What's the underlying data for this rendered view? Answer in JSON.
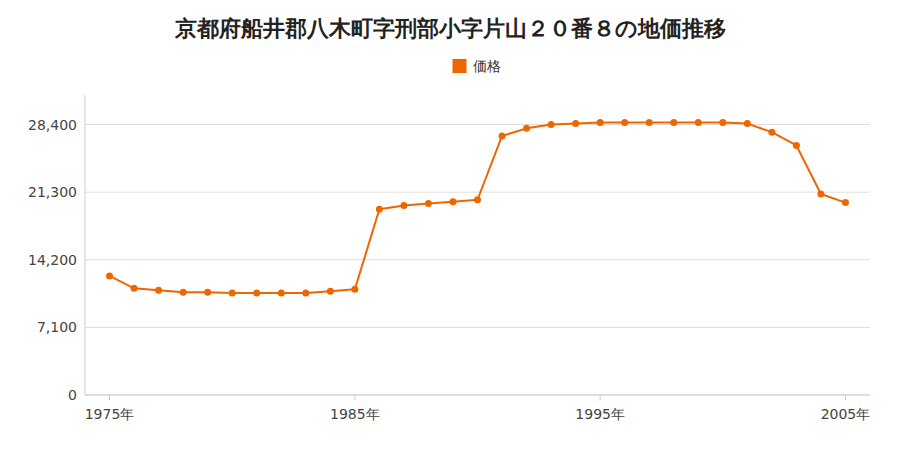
{
  "chart_data": {
    "type": "line",
    "title": "京都府船井郡八木町字刑部小字片山２０番８の地価推移",
    "x": [
      1975,
      1976,
      1977,
      1978,
      1979,
      1980,
      1981,
      1982,
      1983,
      1984,
      1985,
      1986,
      1987,
      1988,
      1989,
      1990,
      1991,
      1992,
      1993,
      1994,
      1995,
      1996,
      1997,
      1998,
      1999,
      2000,
      2001,
      2002,
      2003,
      2004,
      2005
    ],
    "series": [
      {
        "name": "価格",
        "color": "#ee6600",
        "marker": "circle",
        "values": [
          12500,
          11200,
          11000,
          10800,
          10800,
          10700,
          10700,
          10700,
          10700,
          10900,
          11100,
          19500,
          19900,
          20100,
          20300,
          20500,
          27200,
          28000,
          28400,
          28500,
          28600,
          28600,
          28600,
          28600,
          28600,
          28600,
          28500,
          27600,
          26200,
          21100,
          20200
        ]
      }
    ],
    "xlim": [
      1974,
      2006
    ],
    "xticks": [
      {
        "value": 1975,
        "label": "1975年"
      },
      {
        "value": 1985,
        "label": "1985年"
      },
      {
        "value": 1995,
        "label": "1995年"
      },
      {
        "value": 2005,
        "label": "2005年"
      }
    ],
    "ylim": [
      0,
      31500
    ],
    "yticks": [
      0,
      {
        "value": 7100,
        "label": "7,100"
      },
      {
        "value": 14200,
        "label": "14,200"
      },
      {
        "value": 21300,
        "label": "21,300"
      },
      {
        "value": 28400,
        "label": "28,400"
      }
    ],
    "grid": true,
    "legend": "top"
  }
}
